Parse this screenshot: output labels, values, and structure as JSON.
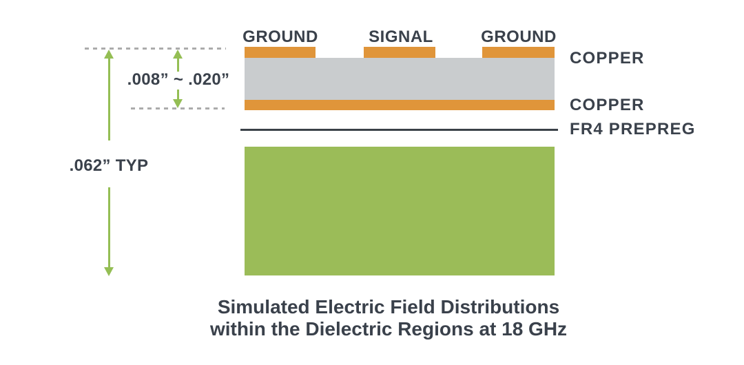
{
  "diagram": {
    "trace_labels": [
      {
        "label": "GROUND"
      },
      {
        "label": "SIGNAL"
      },
      {
        "label": "GROUND"
      }
    ],
    "layer_labels": {
      "copper_top": "COPPER",
      "copper_bottom": "COPPER",
      "fr4_prepreg": "FR4 PREPREG"
    },
    "dimensions": {
      "core_thickness": ".008” ~ .020”",
      "board_thickness": ".062” TYP"
    },
    "caption": {
      "line1": "Simulated Electric Field Distributions",
      "line2": "within the Dielectric Regions at 18 GHz"
    },
    "colors": {
      "copper": "#E0953A",
      "dielectric": "#C9CCCE",
      "fr4_core": "#9BBC58",
      "arrow_green": "#94BE54",
      "dashed_gray": "#ABABAB",
      "text_dark": "#3A414B",
      "prepreg_line": "#3A4148"
    }
  }
}
